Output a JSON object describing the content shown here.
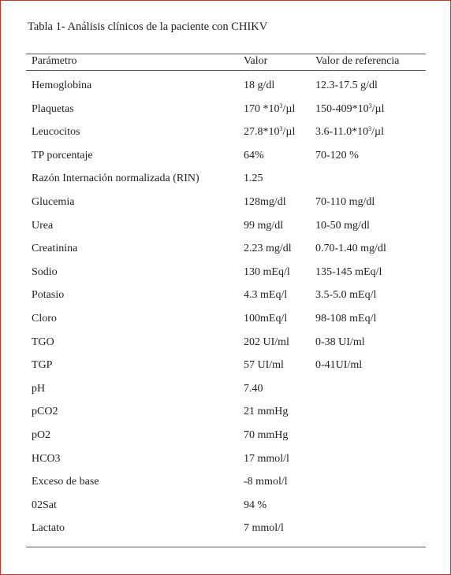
{
  "title": "Tabla 1- Análisis clínicos de la paciente con CHIKV",
  "headers": {
    "parameter": "Parámetro",
    "value": "Valor",
    "reference": "Valor de referencia"
  },
  "rows": [
    {
      "parameter": "Hemoglobina",
      "value": "18 g/dl",
      "reference": "12.3-17.5 g/dl"
    },
    {
      "parameter": "Plaquetas",
      "value": "170 *10³/µl",
      "reference": "150-409*10³/µl"
    },
    {
      "parameter": "Leucocitos",
      "value": "27.8*10³/µl",
      "reference": "3.6-11.0*10³/µl"
    },
    {
      "parameter": "TP porcentaje",
      "value": "64%",
      "reference": "70-120 %"
    },
    {
      "parameter": "Razón Internación normalizada (RIN)",
      "value": "1.25",
      "reference": ""
    },
    {
      "parameter": "Glucemia",
      "value": "128mg/dl",
      "reference": "70-110 mg/dl"
    },
    {
      "parameter": "Urea",
      "value": "99 mg/dl",
      "reference": "10-50 mg/dl"
    },
    {
      "parameter": "Creatinina",
      "value": "2.23 mg/dl",
      "reference": "0.70-1.40 mg/dl"
    },
    {
      "parameter": "Sodio",
      "value": "130 mEq/l",
      "reference": "135-145 mEq/l"
    },
    {
      "parameter": "Potasio",
      "value": "4.3 mEq/l",
      "reference": "3.5-5.0 mEq/l"
    },
    {
      "parameter": "Cloro",
      "value": "100mEq/l",
      "reference": "98-108 mEq/l"
    },
    {
      "parameter": "TGO",
      "value": "202 UI/ml",
      "reference": "0-38 UI/ml"
    },
    {
      "parameter": "TGP",
      "value": "57 UI/ml",
      "reference": "0-41UI/ml"
    },
    {
      "parameter": "pH",
      "value": "7.40",
      "reference": ""
    },
    {
      "parameter": "pCO2",
      "value": "21 mmHg",
      "reference": ""
    },
    {
      "parameter": "pO2",
      "value": "70 mmHg",
      "reference": ""
    },
    {
      "parameter": "HCO3",
      "value": "17 mmol/l",
      "reference": ""
    },
    {
      "parameter": "Exceso de base",
      "value": "-8 mmol/l",
      "reference": ""
    },
    {
      "parameter": "02Sat",
      "value": "94 %",
      "reference": ""
    },
    {
      "parameter": "Lactato",
      "value": "7 mmol/l",
      "reference": ""
    }
  ]
}
